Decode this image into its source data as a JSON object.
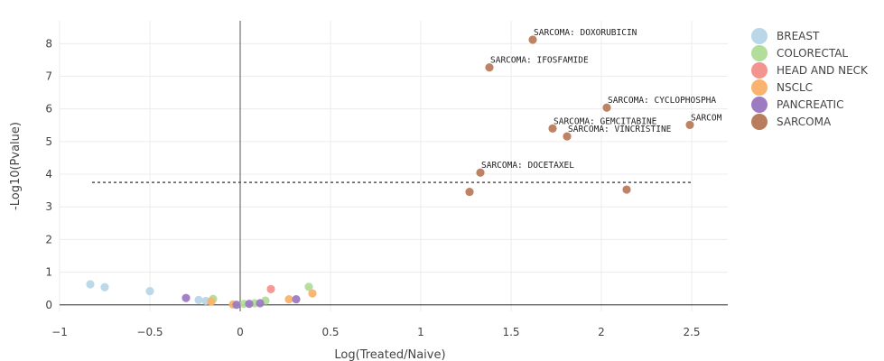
{
  "chart_data": {
    "type": "scatter",
    "xlabel": "Log(Treated/Naive)",
    "ylabel": "-Log10(Pvalue)",
    "xlim": [
      -1,
      2.7
    ],
    "ylim": [
      -0.2,
      8.7
    ],
    "x_ticks": [
      -1,
      -0.5,
      0,
      0.5,
      1,
      1.5,
      2,
      2.5
    ],
    "x_tick_labels": [
      "−1",
      "−0.5",
      "0",
      "0.5",
      "1",
      "1.5",
      "2",
      "2.5"
    ],
    "y_ticks": [
      0,
      1,
      2,
      3,
      4,
      5,
      6,
      7,
      8
    ],
    "y_tick_labels": [
      "0",
      "1",
      "2",
      "3",
      "4",
      "5",
      "6",
      "7",
      "8"
    ],
    "grid": true,
    "legend_position": "right",
    "threshold_line": {
      "y": 3.75,
      "x_range": [
        -0.82,
        2.5
      ]
    },
    "series": [
      {
        "name": "BREAST",
        "color": "#b9d7e8",
        "points": [
          [
            -0.83,
            0.63
          ],
          [
            -0.75,
            0.54
          ],
          [
            -0.5,
            0.42
          ],
          [
            -0.23,
            0.15
          ],
          [
            -0.19,
            0.12
          ]
        ]
      },
      {
        "name": "COLORECTAL",
        "color": "#b2dd9a",
        "points": [
          [
            0.38,
            0.55
          ],
          [
            -0.15,
            0.18
          ],
          [
            0.14,
            0.13
          ],
          [
            0.02,
            0.03
          ],
          [
            0.08,
            0.05
          ]
        ]
      },
      {
        "name": "HEAD AND NECK",
        "color": "#f4948f",
        "points": [
          [
            0.17,
            0.48
          ]
        ]
      },
      {
        "name": "NSCLC",
        "color": "#f9b36e",
        "points": [
          [
            0.4,
            0.35
          ],
          [
            0.27,
            0.17
          ],
          [
            -0.16,
            0.1
          ],
          [
            -0.04,
            0.01
          ]
        ]
      },
      {
        "name": "PANCREATIC",
        "color": "#9d7bc0",
        "points": [
          [
            -0.3,
            0.21
          ],
          [
            0.31,
            0.17
          ],
          [
            0.11,
            0.05
          ],
          [
            0.05,
            0.03
          ],
          [
            -0.02,
            0.0
          ]
        ]
      },
      {
        "name": "SARCOMA",
        "color": "#b97c5c",
        "points": [
          [
            1.62,
            8.12
          ],
          [
            1.38,
            7.27
          ],
          [
            2.03,
            6.04
          ],
          [
            2.49,
            5.51
          ],
          [
            1.73,
            5.4
          ],
          [
            1.81,
            5.16
          ],
          [
            1.33,
            4.05
          ],
          [
            1.27,
            3.46
          ],
          [
            2.14,
            3.53
          ]
        ]
      }
    ],
    "annotations": [
      {
        "text": "SARCOMA: DOXORUBICIN",
        "x": 1.62,
        "y": 8.12
      },
      {
        "text": "SARCOMA: IFOSFAMIDE",
        "x": 1.38,
        "y": 7.27
      },
      {
        "text": "SARCOMA: CYCLOPHOSPHA",
        "x": 2.03,
        "y": 6.04
      },
      {
        "text": "SARCOM",
        "x": 2.49,
        "y": 5.51
      },
      {
        "text": "SARCOMA: GEMCITABINE",
        "x": 1.73,
        "y": 5.4
      },
      {
        "text": "SARCOMA: VINCRISTINE",
        "x": 1.81,
        "y": 5.16
      },
      {
        "text": "SARCOMA: DOCETAXEL",
        "x": 1.33,
        "y": 4.05
      }
    ]
  }
}
